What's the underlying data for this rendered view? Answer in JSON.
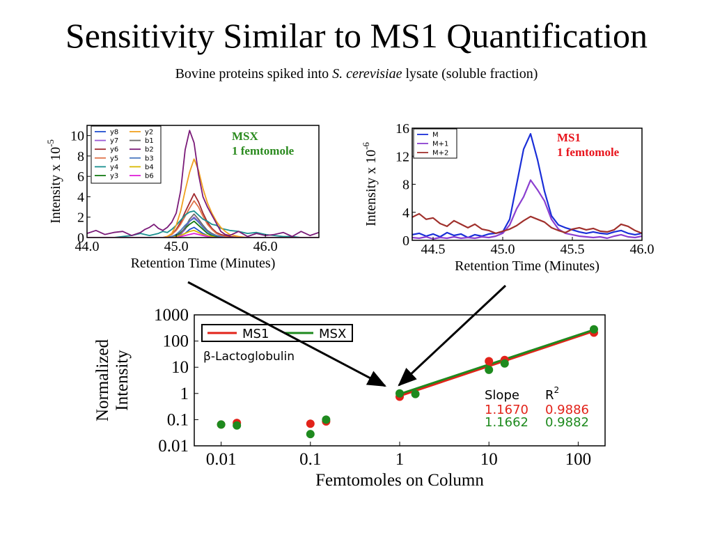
{
  "slide": {
    "title": "Sensitivity Similar to MS1 Quantification",
    "subtitle_pre": "Bovine proteins spiked into ",
    "subtitle_species": "S. cerevisiae",
    "subtitle_post": " lysate (soluble fraction)"
  },
  "colors": {
    "ms1": "#e2231a",
    "msx": "#1e8a1e",
    "ms1_label": "#e8141c",
    "msx_label": "#2a8a1e",
    "arrow": "#000000"
  },
  "chart_data": [
    {
      "type": "line",
      "id": "msx-chromatogram",
      "annotation_line1": "MSX",
      "annotation_line2": "1 femtomole",
      "xlabel": "Retention Time (Minutes)",
      "ylabel": "Intensity x 10",
      "ylabel_exponent": "-5",
      "xlim": [
        44.0,
        46.6
      ],
      "ylim": [
        0,
        11
      ],
      "xticks": [
        44.0,
        45.0,
        46.0
      ],
      "xtick_labels": [
        "44.0",
        "45.0",
        "46.0"
      ],
      "yticks": [
        0,
        2,
        4,
        6,
        8,
        10
      ],
      "ytick_labels": [
        "0",
        "2",
        "4",
        "6",
        "8",
        "10"
      ],
      "grid": false,
      "legend_position": "top-left",
      "x": [
        44.0,
        44.1,
        44.2,
        44.3,
        44.4,
        44.5,
        44.6,
        44.65,
        44.7,
        44.75,
        44.8,
        44.85,
        44.9,
        44.95,
        45.0,
        45.05,
        45.1,
        45.15,
        45.2,
        45.25,
        45.3,
        45.35,
        45.4,
        45.45,
        45.5,
        45.55,
        45.6,
        45.7,
        45.8,
        45.9,
        46.0,
        46.1,
        46.2,
        46.3,
        46.4,
        46.5,
        46.6
      ],
      "series": [
        {
          "name": "y8",
          "color": "#1f4fcf",
          "values": [
            0,
            0,
            0,
            0,
            0,
            0,
            0,
            0,
            0,
            0,
            0,
            0,
            0,
            0,
            0,
            0.2,
            0.4,
            0.8,
            1.0,
            0.7,
            0.4,
            0.2,
            0.1,
            0,
            0,
            0,
            0,
            0,
            0,
            0,
            0,
            0,
            0,
            0,
            0,
            0,
            0
          ]
        },
        {
          "name": "y7",
          "color": "#9b59d6",
          "values": [
            0,
            0,
            0,
            0,
            0,
            0,
            0,
            0,
            0,
            0,
            0,
            0,
            0,
            0,
            0.1,
            0.3,
            0.8,
            1.6,
            2.0,
            1.6,
            1.0,
            0.6,
            0.3,
            0.2,
            0.1,
            0,
            0,
            0,
            0,
            0,
            0,
            0,
            0,
            0,
            0,
            0,
            0
          ]
        },
        {
          "name": "y6",
          "color": "#a0282c",
          "values": [
            0,
            0,
            0,
            0,
            0,
            0,
            0,
            0,
            0,
            0,
            0,
            0,
            0.1,
            0.3,
            0.8,
            1.5,
            2.5,
            3.4,
            4.3,
            3.5,
            2.4,
            1.5,
            0.9,
            0.5,
            0.3,
            0.2,
            0.1,
            0,
            0,
            0,
            0,
            0,
            0,
            0,
            0,
            0,
            0
          ]
        },
        {
          "name": "y5",
          "color": "#e0734a",
          "values": [
            0,
            0,
            0,
            0,
            0,
            0,
            0,
            0,
            0,
            0,
            0,
            0,
            0.1,
            0.3,
            0.7,
            1.3,
            2.1,
            2.9,
            3.6,
            3.0,
            2.1,
            1.3,
            0.8,
            0.4,
            0.2,
            0.1,
            0,
            0,
            0,
            0,
            0,
            0,
            0,
            0,
            0,
            0,
            0
          ]
        },
        {
          "name": "y4",
          "color": "#1a8f8f",
          "values": [
            0,
            0,
            0,
            0,
            0.1,
            0.2,
            0.4,
            0.3,
            0.2,
            0.3,
            0.4,
            0.6,
            0.5,
            0.8,
            1.2,
            1.7,
            2.2,
            2.5,
            2.6,
            2.2,
            1.8,
            1.6,
            1.3,
            1.2,
            0.9,
            0.8,
            0.7,
            0.6,
            0.4,
            0.5,
            0.3,
            0.2,
            0.1,
            0.1,
            0,
            0,
            0
          ]
        },
        {
          "name": "y3",
          "color": "#157a15",
          "values": [
            0,
            0,
            0,
            0,
            0,
            0,
            0,
            0,
            0,
            0,
            0,
            0,
            0,
            0.1,
            0.2,
            0.5,
            0.9,
            1.3,
            1.6,
            1.2,
            0.8,
            0.4,
            0.2,
            0.1,
            0,
            0,
            0,
            0,
            0,
            0,
            0,
            0,
            0,
            0,
            0,
            0,
            0
          ]
        },
        {
          "name": "y2",
          "color": "#f0a020",
          "values": [
            0,
            0,
            0,
            0,
            0,
            0,
            0,
            0,
            0,
            0,
            0,
            0,
            0.1,
            0.4,
            1.2,
            2.6,
            4.6,
            6.4,
            7.7,
            6.6,
            4.8,
            3.4,
            2.4,
            1.6,
            1.0,
            0.6,
            0.3,
            0.1,
            0,
            0,
            0,
            0,
            0,
            0,
            0,
            0,
            0
          ]
        },
        {
          "name": "b1",
          "color": "#6a6a6a",
          "values": [
            0,
            0,
            0,
            0,
            0,
            0,
            0,
            0,
            0,
            0,
            0,
            0,
            0,
            0,
            0.1,
            0.4,
            1.0,
            1.8,
            2.3,
            1.8,
            1.2,
            0.7,
            0.4,
            0.2,
            0.1,
            0,
            0,
            0,
            0,
            0,
            0,
            0,
            0,
            0,
            0,
            0,
            0
          ]
        },
        {
          "name": "b2",
          "color": "#7a1a78",
          "values": [
            0.4,
            0.7,
            0.3,
            0.5,
            0.6,
            0.2,
            0.5,
            0.8,
            1.0,
            1.3,
            0.9,
            0.7,
            1.0,
            1.5,
            2.4,
            4.6,
            8.6,
            10.5,
            9.3,
            6.2,
            4.0,
            3.0,
            2.2,
            1.4,
            0.6,
            0.3,
            0.2,
            0.6,
            0.1,
            0.4,
            0.2,
            0.3,
            0.5,
            0.1,
            0.6,
            0.2,
            0.5
          ]
        },
        {
          "name": "b3",
          "color": "#4a78c0",
          "values": [
            0,
            0,
            0,
            0,
            0,
            0,
            0,
            0,
            0,
            0,
            0,
            0,
            0,
            0.1,
            0.3,
            0.7,
            1.2,
            1.6,
            1.9,
            1.5,
            1.0,
            0.6,
            0.3,
            0.2,
            0.1,
            0,
            0,
            0,
            0,
            0,
            0,
            0,
            0,
            0,
            0,
            0,
            0
          ]
        },
        {
          "name": "b4",
          "color": "#d8b800",
          "values": [
            0,
            0,
            0,
            0,
            0,
            0,
            0,
            0,
            0,
            0,
            0,
            0,
            0,
            0,
            0.1,
            0.2,
            0.4,
            0.6,
            0.7,
            0.5,
            0.3,
            0.2,
            0.1,
            0,
            0,
            0,
            0,
            0,
            0,
            0,
            0,
            0,
            0,
            0,
            0,
            0,
            0
          ]
        },
        {
          "name": "b6",
          "color": "#e020d8",
          "values": [
            0,
            0,
            0,
            0,
            0,
            0,
            0,
            0,
            0,
            0,
            0,
            0,
            0,
            0,
            0,
            0.1,
            0.2,
            0.3,
            0.4,
            0.3,
            0.2,
            0.1,
            0,
            0,
            0,
            0,
            0,
            0,
            0,
            0,
            0,
            0,
            0,
            0,
            0,
            0,
            0
          ]
        }
      ]
    },
    {
      "type": "line",
      "id": "ms1-chromatogram",
      "annotation_line1": "MS1",
      "annotation_line2": "1 femtomole",
      "xlabel": "Retention Time (Minutes)",
      "ylabel": "Intensity x 10",
      "ylabel_exponent": "-6",
      "xlim": [
        44.35,
        46.0
      ],
      "ylim": [
        0,
        16
      ],
      "xticks": [
        44.5,
        45.0,
        45.5,
        46.0
      ],
      "xtick_labels": [
        "44.5",
        "45.0",
        "45.5",
        "46.0"
      ],
      "yticks": [
        0,
        4,
        8,
        12,
        16
      ],
      "ytick_labels": [
        "0",
        "4",
        "8",
        "12",
        "16"
      ],
      "grid": false,
      "legend_position": "top-left",
      "x": [
        44.35,
        44.4,
        44.45,
        44.5,
        44.55,
        44.6,
        44.65,
        44.7,
        44.75,
        44.8,
        44.85,
        44.9,
        44.95,
        45.0,
        45.05,
        45.1,
        45.15,
        45.2,
        45.25,
        45.3,
        45.35,
        45.4,
        45.45,
        45.5,
        45.55,
        45.6,
        45.65,
        45.7,
        45.75,
        45.8,
        45.85,
        45.9,
        45.95,
        46.0
      ],
      "series": [
        {
          "name": "M",
          "color": "#1a2ed8",
          "values": [
            0.8,
            1.0,
            0.6,
            0.9,
            0.5,
            1.1,
            0.7,
            0.9,
            0.4,
            0.8,
            0.6,
            0.9,
            1.0,
            1.2,
            3.0,
            8.0,
            13.0,
            15.2,
            11.5,
            7.0,
            3.5,
            2.2,
            1.8,
            1.5,
            1.2,
            1.0,
            1.2,
            1.0,
            0.9,
            1.2,
            1.4,
            1.0,
            0.8,
            1.0
          ]
        },
        {
          "name": "M+1",
          "color": "#8b3fd0",
          "values": [
            0.4,
            0.3,
            0.5,
            0.2,
            0.4,
            0.3,
            0.5,
            0.3,
            0.4,
            0.3,
            0.5,
            0.4,
            0.6,
            1.0,
            2.2,
            4.5,
            6.2,
            8.6,
            7.2,
            5.6,
            3.0,
            1.6,
            1.0,
            0.8,
            0.6,
            0.5,
            0.4,
            0.5,
            0.3,
            0.6,
            0.8,
            0.5,
            0.4,
            0.6
          ]
        },
        {
          "name": "M+2",
          "color": "#a0302c",
          "values": [
            3.3,
            3.8,
            3.0,
            3.2,
            2.4,
            2.0,
            2.8,
            2.3,
            1.8,
            2.3,
            1.6,
            1.4,
            1.0,
            1.3,
            1.6,
            2.1,
            2.8,
            3.4,
            3.0,
            2.6,
            1.8,
            1.4,
            1.1,
            1.6,
            1.8,
            1.5,
            1.7,
            1.3,
            1.2,
            1.5,
            2.3,
            2.0,
            1.4,
            1.0
          ]
        }
      ]
    },
    {
      "type": "scatter",
      "id": "calibration-plot",
      "annotation": "β-Lactoglobulin",
      "xlabel": "Femtomoles on Column",
      "ylabel_line1": "Normalized",
      "ylabel_line2": "Intensity",
      "xscale": "log",
      "yscale": "log",
      "xlim": [
        0.005,
        200
      ],
      "ylim": [
        0.01,
        1000
      ],
      "xticks": [
        0.01,
        0.1,
        1,
        10,
        100
      ],
      "xtick_labels": [
        "0.01",
        "0.1",
        "1",
        "10",
        "100"
      ],
      "yticks": [
        0.01,
        0.1,
        1,
        10,
        100,
        1000
      ],
      "ytick_labels": [
        "0.01",
        "0.1",
        "1",
        "10",
        "100",
        "1000"
      ],
      "grid": false,
      "legend_position": "top-left",
      "stats_header_slope": "Slope",
      "stats_header_r": "R",
      "stats_header_r_exp": "2",
      "series": [
        {
          "name": "MS1",
          "color": "#e2231a",
          "slope_label": "1.1670",
          "r2_label": "0.9886",
          "points": [
            [
              0.01,
              0.065
            ],
            [
              0.015,
              0.075
            ],
            [
              0.1,
              0.07
            ],
            [
              0.15,
              0.085
            ],
            [
              1,
              0.75
            ],
            [
              10,
              17
            ],
            [
              15,
              19
            ],
            [
              150,
              210
            ]
          ],
          "fit": [
            [
              1,
              0.8
            ],
            [
              150,
              240
            ]
          ]
        },
        {
          "name": "MSX",
          "color": "#1e8a1e",
          "slope_label": "1.1662",
          "r2_label": "0.9882",
          "points": [
            [
              0.01,
              0.065
            ],
            [
              0.015,
              0.06
            ],
            [
              0.1,
              0.028
            ],
            [
              0.15,
              0.1
            ],
            [
              1,
              1.0
            ],
            [
              1.5,
              0.95
            ],
            [
              10,
              8
            ],
            [
              15,
              14
            ],
            [
              150,
              280
            ]
          ],
          "fit": [
            [
              1,
              0.95
            ],
            [
              150,
              270
            ]
          ]
        }
      ]
    }
  ]
}
